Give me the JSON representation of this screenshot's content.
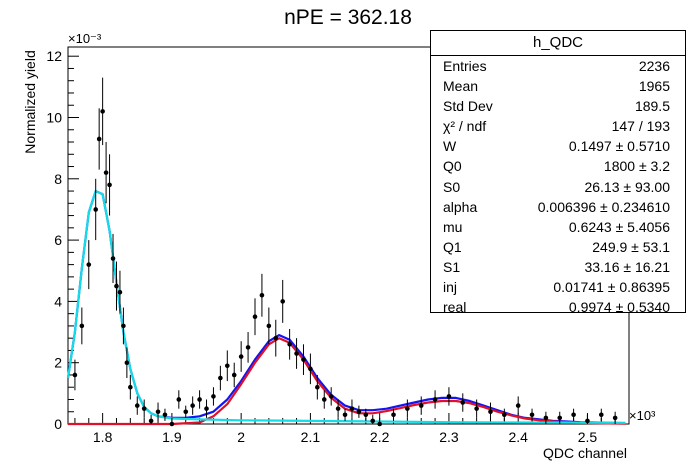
{
  "title": "nPE = 362.18",
  "chart_data": {
    "type": "scatter",
    "title": "nPE = 362.18",
    "xlabel": "QDC channel",
    "ylabel": "Normalized yield",
    "x_multiplier": "×10³",
    "y_multiplier": "×10⁻³",
    "xlim": [
      1750,
      2560
    ],
    "ylim": [
      0,
      12.3
    ],
    "x_ticks": [
      1800,
      1900,
      2000,
      2100,
      2200,
      2300,
      2400,
      2500
    ],
    "x_tick_labels": [
      "1.8",
      "1.9",
      "2",
      "2.1",
      "2.2",
      "2.3",
      "2.4",
      "2.5"
    ],
    "y_ticks": [
      0,
      2,
      4,
      6,
      8,
      10,
      12
    ],
    "y_tick_labels": [
      "0",
      "2",
      "4",
      "6",
      "8",
      "10",
      "12"
    ],
    "grid": false,
    "series": [
      {
        "style": "points with error bars",
        "color": "#000000",
        "x": [
          1760,
          1770,
          1780,
          1790,
          1795,
          1800,
          1805,
          1810,
          1815,
          1820,
          1825,
          1830,
          1835,
          1840,
          1850,
          1860,
          1870,
          1880,
          1890,
          1900,
          1910,
          1920,
          1930,
          1940,
          1950,
          1960,
          1970,
          1980,
          1990,
          2000,
          2010,
          2020,
          2030,
          2040,
          2050,
          2060,
          2070,
          2080,
          2090,
          2100,
          2110,
          2120,
          2130,
          2140,
          2150,
          2160,
          2170,
          2180,
          2190,
          2200,
          2220,
          2240,
          2260,
          2280,
          2300,
          2320,
          2340,
          2360,
          2380,
          2400,
          2420,
          2440,
          2460,
          2480,
          2500,
          2520,
          2540
        ],
        "y": [
          1.6,
          3.2,
          5.2,
          7.0,
          9.3,
          10.2,
          8.2,
          7.8,
          5.4,
          4.5,
          4.3,
          3.2,
          2.0,
          1.2,
          0.6,
          0.5,
          0.1,
          0.4,
          0.3,
          0.0,
          0.8,
          0.4,
          0.6,
          0.8,
          0.5,
          0.9,
          1.5,
          1.9,
          1.6,
          2.2,
          2.5,
          3.5,
          4.2,
          3.2,
          2.8,
          4.0,
          2.6,
          2.3,
          2.1,
          1.8,
          1.2,
          0.8,
          0.9,
          0.5,
          0.3,
          0.5,
          0.4,
          0.3,
          0.1,
          0.0,
          0.3,
          0.5,
          0.6,
          0.8,
          0.9,
          0.7,
          0.5,
          0.4,
          0.3,
          0.6,
          0.3,
          0.2,
          0.2,
          0.3,
          0.1,
          0.3,
          0.2
        ],
        "err": [
          0.5,
          0.6,
          0.8,
          1.0,
          1.0,
          1.1,
          1.0,
          1.0,
          0.8,
          0.8,
          0.7,
          0.6,
          0.5,
          0.4,
          0.3,
          0.3,
          0.2,
          0.3,
          0.2,
          0.2,
          0.3,
          0.2,
          0.3,
          0.3,
          0.3,
          0.3,
          0.4,
          0.5,
          0.4,
          0.5,
          0.5,
          0.6,
          0.7,
          0.6,
          0.6,
          0.7,
          0.5,
          0.5,
          0.5,
          0.5,
          0.4,
          0.3,
          0.3,
          0.3,
          0.2,
          0.3,
          0.2,
          0.2,
          0.2,
          0.2,
          0.2,
          0.3,
          0.3,
          0.3,
          0.3,
          0.3,
          0.3,
          0.3,
          0.2,
          0.3,
          0.2,
          0.2,
          0.2,
          0.2,
          0.2,
          0.2,
          0.2
        ]
      },
      {
        "style": "line",
        "color": "#1414f0",
        "x": [
          1750,
          1760,
          1770,
          1780,
          1790,
          1800,
          1810,
          1820,
          1830,
          1840,
          1850,
          1860,
          1870,
          1880,
          1900,
          1920,
          1940,
          1960,
          1980,
          2000,
          2020,
          2040,
          2055,
          2070,
          2090,
          2110,
          2130,
          2150,
          2170,
          2190,
          2210,
          2230,
          2250,
          2270,
          2290,
          2310,
          2330,
          2350,
          2370,
          2390,
          2410,
          2430,
          2450,
          2470,
          2490,
          2510,
          2530,
          2555
        ],
        "y": [
          1.5,
          3.0,
          5.1,
          6.9,
          7.6,
          7.5,
          6.3,
          4.6,
          3.0,
          1.8,
          1.0,
          0.55,
          0.35,
          0.25,
          0.2,
          0.2,
          0.25,
          0.4,
          0.8,
          1.4,
          2.1,
          2.7,
          2.9,
          2.75,
          2.2,
          1.5,
          0.95,
          0.6,
          0.45,
          0.45,
          0.5,
          0.6,
          0.7,
          0.8,
          0.85,
          0.85,
          0.75,
          0.6,
          0.45,
          0.3,
          0.2,
          0.15,
          0.1,
          0.08,
          0.06,
          0.05,
          0.04,
          0.03
        ]
      },
      {
        "style": "line",
        "color": "#e0102a",
        "x": [
          1750,
          1900,
          1940,
          1960,
          1980,
          2000,
          2020,
          2040,
          2055,
          2070,
          2090,
          2110,
          2130,
          2150,
          2170,
          2190,
          2210,
          2230,
          2250,
          2270,
          2290,
          2310,
          2330,
          2350,
          2370,
          2390,
          2410,
          2430,
          2450,
          2470,
          2490,
          2510,
          2530,
          2555
        ],
        "y": [
          0.0,
          0.0,
          0.05,
          0.25,
          0.65,
          1.3,
          2.0,
          2.6,
          2.8,
          2.65,
          2.1,
          1.4,
          0.85,
          0.5,
          0.35,
          0.35,
          0.42,
          0.52,
          0.62,
          0.7,
          0.75,
          0.75,
          0.68,
          0.55,
          0.4,
          0.28,
          0.18,
          0.12,
          0.08,
          0.06,
          0.04,
          0.03,
          0.02,
          0.01
        ]
      },
      {
        "style": "line",
        "color": "#14dce6",
        "x": [
          1750,
          1760,
          1770,
          1780,
          1790,
          1800,
          1810,
          1820,
          1830,
          1840,
          1850,
          1860,
          1870,
          1880,
          1900,
          1940,
          2000,
          2100,
          2200,
          2300,
          2400,
          2555
        ],
        "y": [
          1.5,
          3.0,
          5.1,
          6.9,
          7.6,
          7.5,
          6.3,
          4.6,
          3.0,
          1.8,
          1.0,
          0.55,
          0.35,
          0.25,
          0.18,
          0.15,
          0.12,
          0.1,
          0.08,
          0.06,
          0.05,
          0.04
        ]
      }
    ]
  },
  "stats": {
    "title": "h_QDC",
    "rows": [
      {
        "key": "Entries",
        "value": "2236"
      },
      {
        "key": "Mean",
        "value": "1965"
      },
      {
        "key": "Std Dev",
        "value": "189.5"
      },
      {
        "key": "χ² / ndf",
        "value": "147 / 193"
      },
      {
        "key": "W",
        "value": "0.1497 ± 0.5710"
      },
      {
        "key": "Q0",
        "value": "1800 ± 3.2"
      },
      {
        "key": "S0",
        "value": "26.13 ± 93.00"
      },
      {
        "key": "alpha",
        "value": "0.006396 ± 0.234610"
      },
      {
        "key": "mu",
        "value": "0.6243 ± 5.4056"
      },
      {
        "key": "Q1",
        "value": "249.9 ± 53.1"
      },
      {
        "key": "S1",
        "value": "33.16 ± 16.21"
      },
      {
        "key": "inj",
        "value": "0.01741 ± 0.86395"
      },
      {
        "key": "real",
        "value": "0.9974 ± 0.5340"
      }
    ]
  }
}
